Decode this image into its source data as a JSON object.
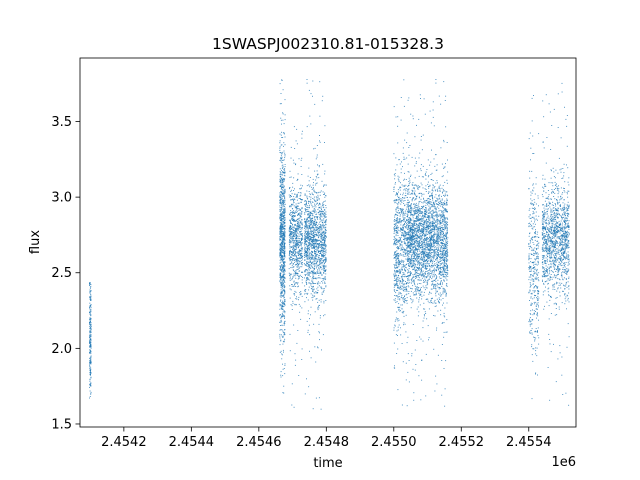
{
  "chart_data": {
    "type": "scatter",
    "title": "1SWASPJ002310.81-015328.3",
    "xlabel": "time",
    "ylabel": "flux",
    "x_offset_label": "1e6",
    "xlim": [
      2454070,
      2455540
    ],
    "ylim": [
      1.48,
      3.92
    ],
    "x_ticks": [
      2454200,
      2454400,
      2454600,
      2454800,
      2455000,
      2455200,
      2455400
    ],
    "x_tick_labels": [
      "2.4542",
      "2.4544",
      "2.4546",
      "2.4548",
      "2.4550",
      "2.4552",
      "2.4554"
    ],
    "y_ticks": [
      1.5,
      2.0,
      2.5,
      3.0,
      3.5
    ],
    "y_tick_labels": [
      "1.5",
      "2.0",
      "2.5",
      "3.0",
      "3.5"
    ],
    "grid": false,
    "legend": "none",
    "marker_color": "#1f77b4",
    "series": [
      {
        "clusters": [
          {
            "x_range": [
              2454098,
              2454103
            ],
            "y_center": 2.1,
            "y_spread": 0.22,
            "y_min": 1.67,
            "y_max": 2.44,
            "density": 0.25
          },
          {
            "x_range": [
              2454662,
              2454678
            ],
            "y_center": 2.72,
            "y_spread": 0.3,
            "y_min": 1.7,
            "y_max": 3.78,
            "density": 1.0
          },
          {
            "x_range": [
              2454690,
              2454730
            ],
            "y_center": 2.72,
            "y_spread": 0.18,
            "y_min": 1.6,
            "y_max": 3.6,
            "density": 0.8
          },
          {
            "x_range": [
              2454735,
              2454800
            ],
            "y_center": 2.7,
            "y_spread": 0.18,
            "y_min": 1.58,
            "y_max": 3.78,
            "density": 0.9
          },
          {
            "x_range": [
              2455000,
              2455040
            ],
            "y_center": 2.68,
            "y_spread": 0.25,
            "y_min": 1.6,
            "y_max": 3.8,
            "density": 0.8
          },
          {
            "x_range": [
              2455040,
              2455120
            ],
            "y_center": 2.72,
            "y_spread": 0.18,
            "y_min": 1.65,
            "y_max": 3.7,
            "density": 1.0
          },
          {
            "x_range": [
              2455120,
              2455160
            ],
            "y_center": 2.7,
            "y_spread": 0.2,
            "y_min": 1.6,
            "y_max": 3.78,
            "density": 0.9
          },
          {
            "x_range": [
              2455400,
              2455430
            ],
            "y_center": 2.55,
            "y_spread": 0.3,
            "y_min": 1.62,
            "y_max": 3.7,
            "density": 0.4
          },
          {
            "x_range": [
              2455440,
              2455520
            ],
            "y_center": 2.72,
            "y_spread": 0.18,
            "y_min": 1.6,
            "y_max": 3.76,
            "density": 0.7
          }
        ]
      }
    ]
  }
}
